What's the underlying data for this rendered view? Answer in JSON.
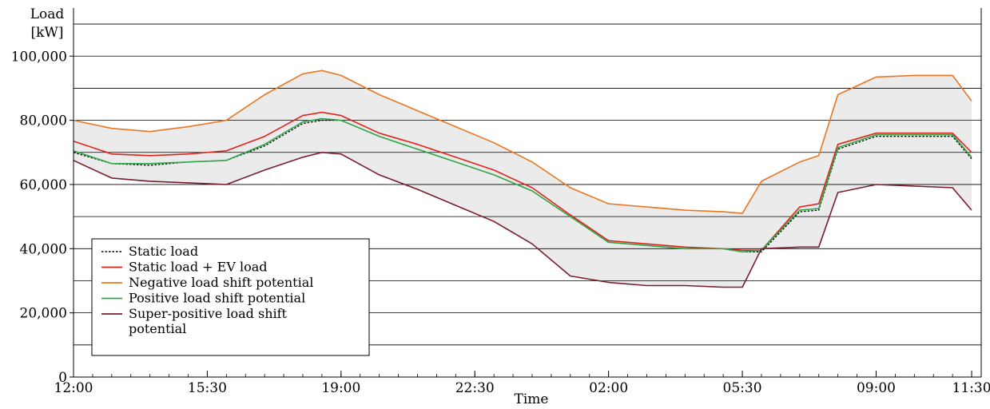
{
  "chart_data": {
    "type": "line",
    "title": "",
    "xlabel": "Time",
    "ylabel": "Load\n[kW]",
    "ylabel_lines": [
      "Load",
      "[kW]"
    ],
    "x_range_hours": [
      12.0,
      35.75
    ],
    "xlim": [
      "12:00",
      "11:45"
    ],
    "ylim": [
      0,
      115000
    ],
    "x_ticks": [
      {
        "label": "12:00",
        "hour": 12.0
      },
      {
        "label": "15:30",
        "hour": 15.5
      },
      {
        "label": "19:00",
        "hour": 19.0
      },
      {
        "label": "22:30",
        "hour": 22.5
      },
      {
        "label": "02:00",
        "hour": 26.0
      },
      {
        "label": "05:30",
        "hour": 29.5
      },
      {
        "label": "09:00",
        "hour": 33.0
      },
      {
        "label": "11:30",
        "hour": 35.5
      }
    ],
    "y_ticks": [
      {
        "label": "0",
        "value": 0
      },
      {
        "label": "20,000",
        "value": 20000
      },
      {
        "label": "40,000",
        "value": 40000
      },
      {
        "label": "60,000",
        "value": 60000
      },
      {
        "label": "80,000",
        "value": 80000
      },
      {
        "label": "100,000",
        "value": 100000
      }
    ],
    "y_gridlines": [
      10000,
      20000,
      30000,
      40000,
      50000,
      60000,
      70000,
      80000,
      90000,
      100000,
      110000
    ],
    "grid": "horizontal",
    "legend_position": "bottom-left",
    "shaded_band": {
      "between": [
        "Negative load shift potential",
        "Super-positive load shift potential"
      ],
      "color": "#ebebeb"
    },
    "series": [
      {
        "name": "Static load",
        "color": "#000000",
        "style": "dotted",
        "x": [
          "12:00",
          "13:00",
          "14:00",
          "15:00",
          "16:00",
          "17:00",
          "18:00",
          "18:30",
          "19:00",
          "20:00",
          "21:00",
          "22:00",
          "23:00",
          "24:00",
          "01:00",
          "02:00",
          "03:00",
          "04:00",
          "05:00",
          "05:30",
          "06:00",
          "07:00",
          "07:30",
          "08:00",
          "09:00",
          "10:00",
          "11:00",
          "11:30"
        ],
        "values": [
          70000,
          66500,
          66000,
          67000,
          67500,
          72000,
          79000,
          80000,
          80000,
          75000,
          71000,
          67000,
          63000,
          58000,
          50000,
          42000,
          41000,
          40000,
          40000,
          39000,
          39000,
          51500,
          52000,
          71000,
          75000,
          75000,
          75000,
          68000
        ]
      },
      {
        "name": "Static load + EV load",
        "color": "#e2231a",
        "style": "solid",
        "x": [
          "12:00",
          "13:00",
          "14:00",
          "15:00",
          "16:00",
          "17:00",
          "18:00",
          "18:30",
          "19:00",
          "20:00",
          "21:00",
          "22:00",
          "23:00",
          "24:00",
          "01:00",
          "02:00",
          "03:00",
          "04:00",
          "05:00",
          "05:30",
          "06:00",
          "07:00",
          "07:30",
          "08:00",
          "09:00",
          "10:00",
          "11:00",
          "11:30"
        ],
        "values": [
          73500,
          69500,
          69000,
          69500,
          70500,
          75000,
          81500,
          82500,
          81500,
          76000,
          72500,
          68500,
          64500,
          59000,
          50500,
          42500,
          41500,
          40500,
          40000,
          39500,
          39500,
          53000,
          54000,
          72500,
          76000,
          76000,
          76000,
          70000
        ]
      },
      {
        "name": "Negative load shift potential",
        "color": "#e87722",
        "style": "solid",
        "x": [
          "12:00",
          "13:00",
          "14:00",
          "15:00",
          "16:00",
          "17:00",
          "18:00",
          "18:30",
          "19:00",
          "20:00",
          "21:00",
          "22:00",
          "23:00",
          "24:00",
          "01:00",
          "02:00",
          "03:00",
          "04:00",
          "05:00",
          "05:30",
          "06:00",
          "07:00",
          "07:30",
          "08:00",
          "09:00",
          "10:00",
          "11:00",
          "11:30"
        ],
        "values": [
          80000,
          77500,
          76500,
          78000,
          80000,
          88000,
          94500,
          95500,
          94000,
          88000,
          83000,
          78000,
          73000,
          67000,
          59000,
          54000,
          53000,
          52000,
          51500,
          51000,
          61000,
          67000,
          69000,
          88000,
          93500,
          94000,
          94000,
          86000
        ]
      },
      {
        "name": "Positive load shift potential",
        "color": "#2ea84a",
        "style": "solid",
        "x": [
          "12:00",
          "13:00",
          "14:00",
          "15:00",
          "16:00",
          "17:00",
          "18:00",
          "18:30",
          "19:00",
          "20:00",
          "21:00",
          "22:00",
          "23:00",
          "24:00",
          "01:00",
          "02:00",
          "03:00",
          "04:00",
          "05:00",
          "05:30",
          "06:00",
          "07:00",
          "07:30",
          "08:00",
          "09:00",
          "10:00",
          "11:00",
          "11:30"
        ],
        "values": [
          70500,
          66500,
          66500,
          67000,
          67500,
          72500,
          79500,
          80500,
          80000,
          75000,
          71000,
          67000,
          63000,
          58000,
          50000,
          42000,
          41000,
          40000,
          40000,
          39000,
          39500,
          52000,
          52500,
          71500,
          75500,
          75500,
          75500,
          68500
        ]
      },
      {
        "name": "Super-positive load shift potential",
        "color": "#7b1c2e",
        "style": "solid",
        "x": [
          "12:00",
          "13:00",
          "14:00",
          "15:00",
          "16:00",
          "17:00",
          "18:00",
          "18:30",
          "19:00",
          "20:00",
          "21:00",
          "22:00",
          "23:00",
          "24:00",
          "01:00",
          "02:00",
          "03:00",
          "04:00",
          "05:00",
          "05:30",
          "06:00",
          "07:00",
          "07:30",
          "08:00",
          "09:00",
          "10:00",
          "11:00",
          "11:30"
        ],
        "values": [
          67500,
          62000,
          61000,
          60500,
          60000,
          64500,
          68500,
          70000,
          69500,
          63000,
          58500,
          53500,
          48500,
          41500,
          31500,
          29500,
          28500,
          28500,
          28000,
          28000,
          40000,
          40500,
          40500,
          57500,
          60000,
          59500,
          59000,
          52000
        ]
      }
    ],
    "legend": [
      {
        "label": "Static load",
        "series": "Static load"
      },
      {
        "label": "Static load + EV load",
        "series": "Static load + EV load"
      },
      {
        "label": "Negative load shift potential",
        "series": "Negative load shift potential"
      },
      {
        "label": "Positive load shift potential",
        "series": "Positive load shift potential"
      },
      {
        "label": "Super-positive load shift",
        "label2": "potential",
        "series": "Super-positive load shift potential"
      }
    ]
  }
}
